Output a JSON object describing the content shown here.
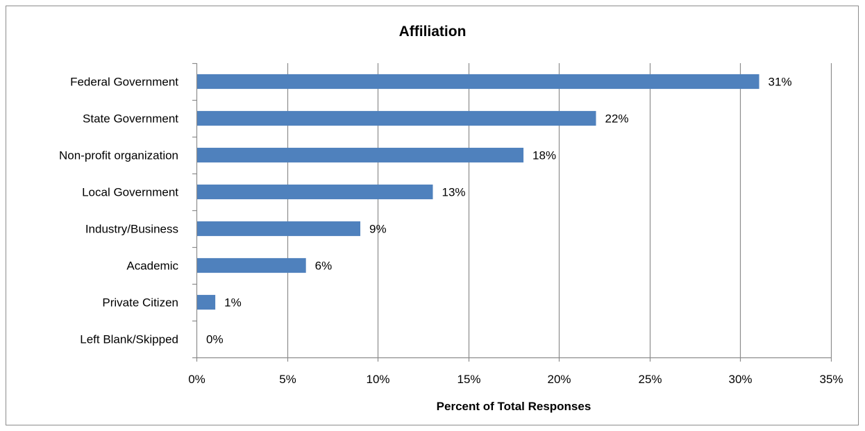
{
  "chart_data": {
    "type": "bar",
    "orientation": "horizontal",
    "title": "Affiliation",
    "xlabel": "Percent of Total Responses",
    "ylabel": "",
    "categories": [
      "Federal Government",
      "State Government",
      "Non-profit organization",
      "Local Government",
      "Industry/Business",
      "Academic",
      "Private Citizen",
      "Left Blank/Skipped"
    ],
    "values": [
      31,
      22,
      18,
      13,
      9,
      6,
      1,
      0
    ],
    "data_labels": [
      "31%",
      "22%",
      "18%",
      "13%",
      "9%",
      "6%",
      "1%",
      "0%"
    ],
    "xlim": [
      0,
      35
    ],
    "xticks": [
      0,
      5,
      10,
      15,
      20,
      25,
      30,
      35
    ],
    "xtick_labels": [
      "0%",
      "5%",
      "10%",
      "15%",
      "20%",
      "25%",
      "30%",
      "35%"
    ],
    "grid": "vertical",
    "legend": "none",
    "bar_color": "#4F81BD",
    "grid_color": "#8C8C8C"
  }
}
